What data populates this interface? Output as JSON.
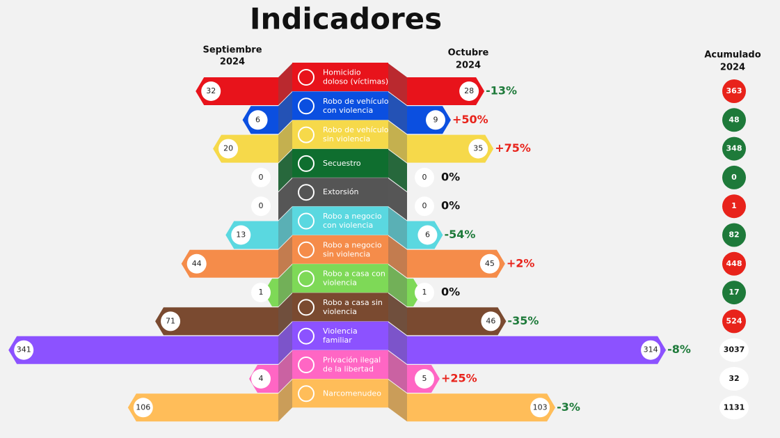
{
  "header": {
    "title": "Indicadores",
    "left_heading": [
      "Septiembre",
      "2024"
    ],
    "right_heading": [
      "Octubre",
      "2024"
    ],
    "total_heading": [
      "Acumulado",
      "2024"
    ]
  },
  "rows": [
    {
      "label": [
        "Homicidio",
        "doloso (víctimas)"
      ],
      "september": 32,
      "october": 28,
      "change": "-13%",
      "accumulated": 363,
      "color": "#e8131b",
      "change_color": "#1e7a3a",
      "acc_color": "#e8231b"
    },
    {
      "label": [
        "Robo de vehículo",
        "con violencia"
      ],
      "september": 6,
      "october": 9,
      "change": "+50%",
      "accumulated": 48,
      "color": "#0b4fe0",
      "change_color": "#e8231b",
      "acc_color": "#1e7a3a"
    },
    {
      "label": [
        "Robo de vehículo",
        "sin violencia"
      ],
      "september": 20,
      "october": 35,
      "change": "+75%",
      "accumulated": 348,
      "color": "#f6d94a",
      "change_color": "#e8231b",
      "acc_color": "#1e7a3a"
    },
    {
      "label": [
        "Secuestro"
      ],
      "september": 0,
      "october": 0,
      "change": "0%",
      "accumulated": 0,
      "color": "#0f6e2f",
      "change_color": "#111111",
      "acc_color": "#1e7a3a"
    },
    {
      "label": [
        "Extorsión"
      ],
      "september": 0,
      "october": 0,
      "change": "0%",
      "accumulated": 1,
      "color": "#555555",
      "change_color": "#111111",
      "acc_color": "#e8231b"
    },
    {
      "label": [
        "Robo a negocio",
        "con violencia"
      ],
      "september": 13,
      "october": 6,
      "change": "-54%",
      "accumulated": 82,
      "color": "#5ad8e0",
      "change_color": "#1e7a3a",
      "acc_color": "#1e7a3a"
    },
    {
      "label": [
        "Robo a negocio",
        "sin violencia"
      ],
      "september": 44,
      "october": 45,
      "change": "+2%",
      "accumulated": 448,
      "color": "#f58c4a",
      "change_color": "#e8231b",
      "acc_color": "#e8231b"
    },
    {
      "label": [
        "Robo a casa con",
        "violencia"
      ],
      "september": 1,
      "october": 1,
      "change": "0%",
      "accumulated": 17,
      "color": "#7ed957",
      "change_color": "#111111",
      "acc_color": "#1e7a3a"
    },
    {
      "label": [
        "Robo a casa sin",
        "violencia"
      ],
      "september": 71,
      "october": 46,
      "change": "-35%",
      "accumulated": 524,
      "color": "#7a4a30",
      "change_color": "#1e7a3a",
      "acc_color": "#e8231b"
    },
    {
      "label": [
        "Violencia",
        "familiar"
      ],
      "september": 341,
      "october": 314,
      "change": "-8%",
      "accumulated": 3037,
      "color": "#8c52ff",
      "change_color": "#1e7a3a",
      "acc_color": "#ffffff"
    },
    {
      "label": [
        "Privación ilegal",
        "de la libertad"
      ],
      "september": 4,
      "october": 5,
      "change": "+25%",
      "accumulated": 32,
      "color": "#ff66c4",
      "change_color": "#e8231b",
      "acc_color": "#ffffff"
    },
    {
      "label": [
        "Narcomenudeo"
      ],
      "september": 106,
      "october": 103,
      "change": "-3%",
      "accumulated": 1131,
      "color": "#ffbd59",
      "change_color": "#1e7a3a",
      "acc_color": "#ffffff"
    }
  ]
}
